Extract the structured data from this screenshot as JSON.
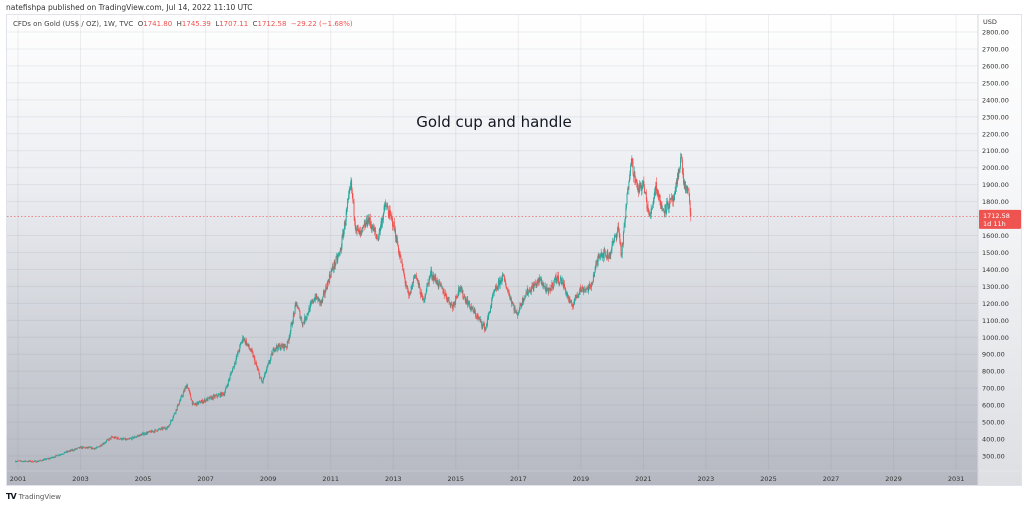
{
  "header": {
    "published": "natefishpa published on TradingView.com, Jul 14, 2022 11:10 UTC",
    "symbol": "CFDs on Gold (US$ / OZ), 1W, TVC",
    "open_label": "O",
    "open": "1741.80",
    "high_label": "H",
    "high": "1745.39",
    "low_label": "L",
    "low": "1707.11",
    "close_label": "C",
    "close": "1712.58",
    "change": "−29.22 (−1.68%)"
  },
  "footer": {
    "brand": "TradingView",
    "logo": "TV"
  },
  "colors": {
    "up": "#26a69a",
    "down": "#ef5350",
    "price_line": "#ef5350"
  },
  "chart_data": {
    "type": "candlestick",
    "title": "Gold cup and handle",
    "currency": "USD",
    "xlim": [
      2000.7,
      2032.0
    ],
    "ylim": [
      250,
      2830
    ],
    "x_ticks": [
      "2001",
      "2003",
      "2005",
      "2007",
      "2009",
      "2011",
      "2013",
      "2015",
      "2017",
      "2019",
      "2021",
      "2023",
      "2025",
      "2027",
      "2029",
      "2031"
    ],
    "y_ticks": [
      "2800.00",
      "2700.00",
      "2600.00",
      "2500.00",
      "2400.00",
      "2300.00",
      "2200.00",
      "2100.00",
      "2000.00",
      "1900.00",
      "1800.00",
      "1600.00",
      "1500.00",
      "1400.00",
      "1300.00",
      "1200.00",
      "1100.00",
      "1000.00",
      "900.00",
      "800.00",
      "700.00",
      "600.00",
      "500.00",
      "400.00",
      "300.00"
    ],
    "last_price": 1712.58,
    "last_price_label": "1712.58",
    "countdown": "1d 11h",
    "price_path": [
      [
        2000.9,
        270
      ],
      [
        2001.6,
        268
      ],
      [
        2002.0,
        285
      ],
      [
        2002.5,
        320
      ],
      [
        2003.0,
        350
      ],
      [
        2003.5,
        345
      ],
      [
        2004.0,
        410
      ],
      [
        2004.5,
        395
      ],
      [
        2005.0,
        430
      ],
      [
        2005.8,
        470
      ],
      [
        2006.0,
        550
      ],
      [
        2006.4,
        720
      ],
      [
        2006.6,
        600
      ],
      [
        2007.0,
        630
      ],
      [
        2007.6,
        670
      ],
      [
        2008.2,
        1000
      ],
      [
        2008.5,
        900
      ],
      [
        2008.8,
        730
      ],
      [
        2009.2,
        940
      ],
      [
        2009.6,
        950
      ],
      [
        2009.9,
        1200
      ],
      [
        2010.1,
        1080
      ],
      [
        2010.5,
        1240
      ],
      [
        2010.7,
        1200
      ],
      [
        2011.0,
        1380
      ],
      [
        2011.3,
        1500
      ],
      [
        2011.65,
        1900
      ],
      [
        2011.8,
        1650
      ],
      [
        2011.95,
        1600
      ],
      [
        2012.2,
        1700
      ],
      [
        2012.5,
        1580
      ],
      [
        2012.75,
        1780
      ],
      [
        2013.0,
        1670
      ],
      [
        2013.3,
        1400
      ],
      [
        2013.5,
        1230
      ],
      [
        2013.7,
        1380
      ],
      [
        2013.95,
        1210
      ],
      [
        2014.2,
        1380
      ],
      [
        2014.5,
        1300
      ],
      [
        2014.9,
        1180
      ],
      [
        2015.1,
        1290
      ],
      [
        2015.5,
        1170
      ],
      [
        2015.95,
        1050
      ],
      [
        2016.2,
        1250
      ],
      [
        2016.5,
        1360
      ],
      [
        2016.95,
        1130
      ],
      [
        2017.2,
        1250
      ],
      [
        2017.7,
        1340
      ],
      [
        2017.95,
        1260
      ],
      [
        2018.2,
        1350
      ],
      [
        2018.4,
        1330
      ],
      [
        2018.7,
        1180
      ],
      [
        2018.95,
        1280
      ],
      [
        2019.3,
        1290
      ],
      [
        2019.6,
        1500
      ],
      [
        2019.9,
        1480
      ],
      [
        2020.2,
        1650
      ],
      [
        2020.3,
        1480
      ],
      [
        2020.6,
        2060
      ],
      [
        2020.8,
        1870
      ],
      [
        2021.0,
        1900
      ],
      [
        2021.2,
        1700
      ],
      [
        2021.4,
        1900
      ],
      [
        2021.6,
        1750
      ],
      [
        2021.9,
        1800
      ],
      [
        2022.0,
        1820
      ],
      [
        2022.2,
        2070
      ],
      [
        2022.3,
        1900
      ],
      [
        2022.45,
        1840
      ],
      [
        2022.53,
        1712.58
      ]
    ]
  }
}
